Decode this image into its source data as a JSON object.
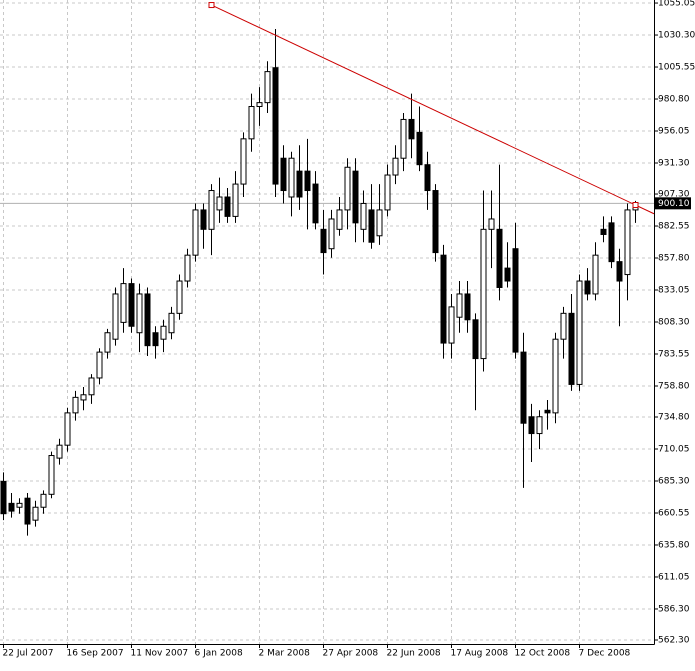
{
  "chart_data": {
    "type": "candlestick",
    "categories": [
      "22 Jul 2007",
      null,
      null,
      null,
      null,
      null,
      null,
      null,
      "16 Sep 2007",
      null,
      null,
      null,
      null,
      null,
      null,
      null,
      "11 Nov 2007",
      null,
      null,
      null,
      null,
      null,
      null,
      null,
      "6 Jan 2008",
      null,
      null,
      null,
      null,
      null,
      null,
      null,
      "2 Mar 2008",
      null,
      null,
      null,
      null,
      null,
      null,
      null,
      "27 Apr 2008",
      null,
      null,
      null,
      null,
      null,
      null,
      null,
      "22 Jun 2008",
      null,
      null,
      null,
      null,
      null,
      null,
      null,
      "17 Aug 2008",
      null,
      null,
      null,
      null,
      null,
      null,
      null,
      "12 Oct 2008",
      null,
      null,
      null,
      null,
      null,
      null,
      null,
      "7 Dec 2008",
      null,
      null,
      null,
      null,
      null,
      null,
      null
    ],
    "open": [
      685,
      668,
      665,
      672,
      655,
      665,
      675,
      703,
      713,
      738,
      748,
      752,
      765,
      785,
      795,
      808,
      838,
      800,
      830,
      800,
      795,
      800,
      815,
      840,
      860,
      895,
      880,
      895,
      905,
      890,
      915,
      950,
      975,
      978,
      1005,
      935,
      905,
      925,
      925,
      915,
      880,
      865,
      880,
      895,
      925,
      880,
      895,
      875,
      895,
      922,
      935,
      965,
      955,
      930,
      910,
      860,
      792,
      812,
      830,
      810,
      780,
      880,
      880,
      850,
      865,
      785,
      735,
      722,
      740,
      738,
      795,
      815,
      760,
      840,
      830,
      880,
      885,
      855,
      845,
      895
    ],
    "high": [
      692,
      676,
      672,
      676,
      670,
      678,
      708,
      718,
      742,
      755,
      758,
      768,
      788,
      803,
      835,
      850,
      842,
      838,
      835,
      805,
      810,
      820,
      845,
      865,
      900,
      900,
      915,
      920,
      912,
      925,
      955,
      985,
      990,
      1010,
      1035,
      945,
      940,
      945,
      950,
      925,
      895,
      895,
      905,
      935,
      935,
      910,
      915,
      915,
      930,
      945,
      970,
      985,
      975,
      940,
      915,
      868,
      830,
      840,
      840,
      815,
      910,
      910,
      930,
      870,
      885,
      800,
      745,
      740,
      748,
      800,
      820,
      830,
      845,
      850,
      870,
      890,
      890,
      865,
      900,
      902
    ],
    "low": [
      655,
      657,
      660,
      643,
      650,
      660,
      672,
      698,
      708,
      732,
      740,
      745,
      760,
      780,
      790,
      800,
      800,
      785,
      782,
      780,
      785,
      795,
      810,
      835,
      855,
      865,
      860,
      885,
      885,
      885,
      905,
      940,
      960,
      970,
      905,
      900,
      890,
      895,
      880,
      880,
      845,
      858,
      875,
      880,
      870,
      870,
      865,
      868,
      890,
      915,
      925,
      935,
      925,
      895,
      855,
      780,
      780,
      800,
      800,
      740,
      770,
      850,
      825,
      835,
      780,
      680,
      700,
      710,
      725,
      730,
      780,
      755,
      755,
      825,
      825,
      870,
      850,
      805,
      825,
      885
    ],
    "close": [
      660,
      662,
      668,
      652,
      665,
      675,
      705,
      713,
      738,
      750,
      752,
      765,
      785,
      800,
      830,
      838,
      805,
      830,
      790,
      790,
      805,
      815,
      840,
      860,
      895,
      880,
      910,
      905,
      890,
      915,
      950,
      975,
      978,
      1002,
      915,
      910,
      935,
      905,
      910,
      885,
      862,
      888,
      895,
      928,
      885,
      900,
      870,
      895,
      922,
      935,
      965,
      950,
      930,
      910,
      862,
      792,
      820,
      830,
      810,
      780,
      880,
      888,
      835,
      840,
      785,
      730,
      722,
      735,
      738,
      795,
      815,
      760,
      840,
      830,
      860,
      876,
      855,
      840,
      895,
      900.1
    ],
    "up_color": "#ffffff",
    "down_color": "#000000",
    "edge_color": "#000000",
    "ylim": [
      559.2,
      1057.4
    ],
    "yticks": [
      {
        "value": 1055.05,
        "label": "1055.05"
      },
      {
        "value": 1030.3,
        "label": "1030.30"
      },
      {
        "value": 1005.55,
        "label": "1005.55"
      },
      {
        "value": 980.8,
        "label": "980.80"
      },
      {
        "value": 956.05,
        "label": "956.05"
      },
      {
        "value": 931.3,
        "label": "931.30"
      },
      {
        "value": 907.3,
        "label": "907.30"
      },
      {
        "value": 882.55,
        "label": "882.55"
      },
      {
        "value": 857.8,
        "label": "857.80"
      },
      {
        "value": 833.05,
        "label": "833.05"
      },
      {
        "value": 808.3,
        "label": "808.30"
      },
      {
        "value": 783.55,
        "label": "783.55"
      },
      {
        "value": 758.8,
        "label": "758.80"
      },
      {
        "value": 734.8,
        "label": "734.80"
      },
      {
        "value": 710.05,
        "label": "710.05"
      },
      {
        "value": 685.3,
        "label": "685.30"
      },
      {
        "value": 660.55,
        "label": "660.55"
      },
      {
        "value": 635.8,
        "label": "635.80"
      },
      {
        "value": 611.05,
        "label": "611.05"
      },
      {
        "value": 586.3,
        "label": "586.30"
      },
      {
        "value": 562.3,
        "label": "562.30"
      }
    ],
    "grid": true,
    "price_line": {
      "value": 900.1,
      "label": "900.10"
    },
    "trendline": {
      "x": [
        26,
        79
      ],
      "values": [
        1053.5,
        898.8
      ],
      "color": "#cc0000"
    }
  }
}
